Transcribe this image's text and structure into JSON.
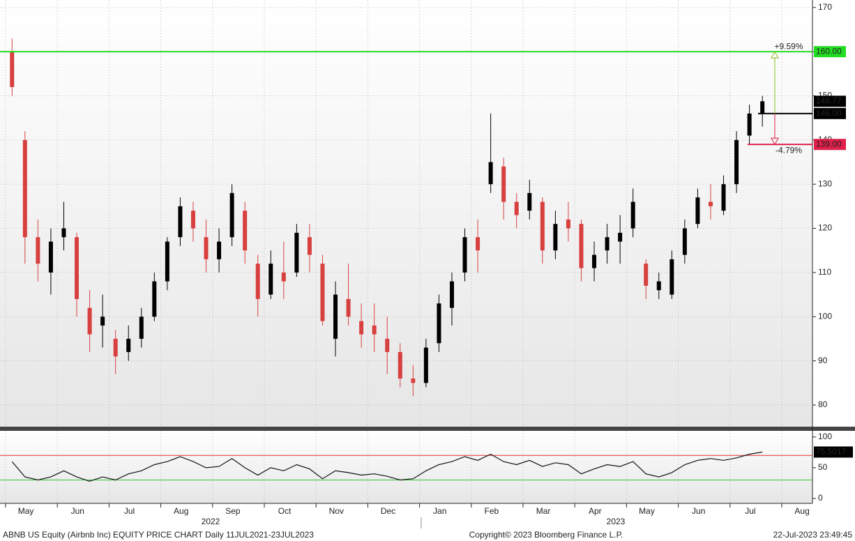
{
  "chart_data": {
    "type": "candlestick",
    "footer_left": "ABNB US Equity (Airbnb Inc) EQUITY PRICE CHART  Daily 11JUL2021-23JUL2023",
    "footer_center": "Copyright© 2023 Bloomberg Finance L.P.",
    "footer_right": "22-Jul-2023 23:49:45",
    "years": [
      "2022",
      "2023"
    ],
    "ylim": [
      75.1,
      171.7
    ],
    "yticks": [
      80,
      90,
      100,
      110,
      120,
      130,
      140,
      150,
      160,
      170
    ],
    "rsi_ylim": [
      -8,
      110
    ],
    "rsi_yticks": [
      0,
      50,
      100
    ],
    "rsi_levels": [
      {
        "value": 70,
        "color": "#e03030"
      },
      {
        "value": 30,
        "color": "#30c030"
      }
    ],
    "rsi_last": 75.5017,
    "last_price": 148.77,
    "levels": [
      {
        "value": 160,
        "label": "160.00",
        "color": "#22dd22"
      },
      {
        "value": 146,
        "label": "146.00",
        "color": "#000000"
      },
      {
        "value": 139,
        "label": "139.00",
        "color": "#e0204a"
      }
    ],
    "changes": [
      {
        "value": 9.59,
        "label": "+9.59%",
        "color": "#88c020"
      },
      {
        "value": -4.79,
        "label": "-4.79%",
        "color": "#e0204a"
      }
    ],
    "up_color": "#000000",
    "down_color": "#d84040",
    "months": [
      {
        "label": "May",
        "candles": [
          [
            160,
            163,
            150,
            152
          ],
          [
            140,
            142,
            112,
            118
          ],
          [
            118,
            122,
            108,
            112
          ],
          [
            110,
            120,
            105,
            117
          ]
        ],
        "rsi": [
          60,
          35,
          30,
          35
        ]
      },
      {
        "label": "Jun",
        "candles": [
          [
            118,
            126,
            115,
            120
          ],
          [
            118,
            119,
            100,
            104
          ],
          [
            102,
            106,
            92,
            96
          ],
          [
            98,
            105,
            93,
            100
          ]
        ],
        "rsi": [
          45,
          35,
          28,
          35
        ]
      },
      {
        "label": "Jul",
        "candles": [
          [
            95,
            97,
            87,
            91
          ],
          [
            92,
            98,
            90,
            95
          ],
          [
            95,
            102,
            93,
            100
          ],
          [
            100,
            110,
            99,
            108
          ]
        ],
        "rsi": [
          30,
          40,
          45,
          55
        ]
      },
      {
        "label": "Aug",
        "candles": [
          [
            108,
            118,
            106,
            117
          ],
          [
            118,
            127,
            116,
            125
          ],
          [
            124,
            126,
            117,
            120
          ],
          [
            118,
            122,
            110,
            113
          ]
        ],
        "rsi": [
          60,
          68,
          60,
          50
        ]
      },
      {
        "label": "Sep",
        "candles": [
          [
            113,
            120,
            110,
            117
          ],
          [
            118,
            130,
            116,
            128
          ],
          [
            124,
            126,
            112,
            115
          ],
          [
            112,
            114,
            100,
            104
          ]
        ],
        "rsi": [
          52,
          65,
          50,
          38
        ]
      },
      {
        "label": "Oct",
        "candles": [
          [
            105,
            115,
            104,
            112
          ],
          [
            110,
            117,
            104,
            108
          ],
          [
            110,
            121,
            109,
            119
          ],
          [
            118,
            121,
            110,
            114
          ]
        ],
        "rsi": [
          50,
          45,
          55,
          48
        ]
      },
      {
        "label": "Nov",
        "candles": [
          [
            112,
            114,
            98,
            99
          ],
          [
            95,
            108,
            91,
            105
          ],
          [
            104,
            112,
            98,
            100
          ],
          [
            99,
            103,
            93,
            96
          ]
        ],
        "rsi": [
          32,
          45,
          42,
          38
        ]
      },
      {
        "label": "Dec",
        "candles": [
          [
            98,
            103,
            92,
            96
          ],
          [
            95,
            100,
            87,
            92
          ],
          [
            92,
            94,
            84,
            86
          ],
          [
            86,
            89,
            82,
            85
          ]
        ],
        "rsi": [
          40,
          36,
          30,
          32
        ]
      },
      {
        "label": "Jan",
        "candles": [
          [
            85,
            95,
            84,
            93
          ],
          [
            94,
            105,
            92,
            103
          ],
          [
            102,
            110,
            98,
            108
          ],
          [
            110,
            120,
            108,
            118
          ]
        ],
        "rsi": [
          45,
          55,
          60,
          68
        ]
      },
      {
        "label": "Feb",
        "candles": [
          [
            118,
            122,
            110,
            115
          ],
          [
            130,
            146,
            128,
            135
          ],
          [
            134,
            136,
            122,
            126
          ],
          [
            126,
            128,
            120,
            123
          ]
        ],
        "rsi": [
          62,
          72,
          60,
          55
        ]
      },
      {
        "label": "Mar",
        "candles": [
          [
            124,
            131,
            122,
            128
          ],
          [
            126,
            127,
            112,
            115
          ],
          [
            115,
            124,
            113,
            121
          ],
          [
            122,
            126,
            117,
            120
          ]
        ],
        "rsi": [
          62,
          52,
          58,
          55
        ]
      },
      {
        "label": "Apr",
        "candles": [
          [
            121,
            122,
            108,
            111
          ],
          [
            111,
            117,
            108,
            114
          ],
          [
            115,
            121,
            112,
            118
          ],
          [
            117,
            123,
            112,
            119
          ]
        ],
        "rsi": [
          40,
          48,
          55,
          52
        ]
      },
      {
        "label": "May",
        "candles": [
          [
            120,
            129,
            118,
            126
          ],
          [
            112,
            113,
            104,
            107
          ],
          [
            106,
            110,
            104,
            108
          ],
          [
            105,
            115,
            104,
            113
          ]
        ],
        "rsi": [
          60,
          40,
          35,
          42
        ]
      },
      {
        "label": "Jun",
        "candles": [
          [
            114,
            122,
            112,
            120
          ],
          [
            121,
            129,
            120,
            127
          ],
          [
            126,
            130,
            122,
            125
          ],
          [
            124,
            132,
            123,
            130
          ]
        ],
        "rsi": [
          55,
          62,
          65,
          62
        ]
      },
      {
        "label": "Jul",
        "candles": [
          [
            130,
            142,
            128,
            140
          ],
          [
            141,
            148,
            139,
            146
          ],
          [
            146,
            150,
            143,
            148.77
          ]
        ],
        "rsi": [
          66,
          72,
          75.5017
        ]
      },
      {
        "label": "Aug",
        "candles": [],
        "rsi": []
      }
    ]
  }
}
